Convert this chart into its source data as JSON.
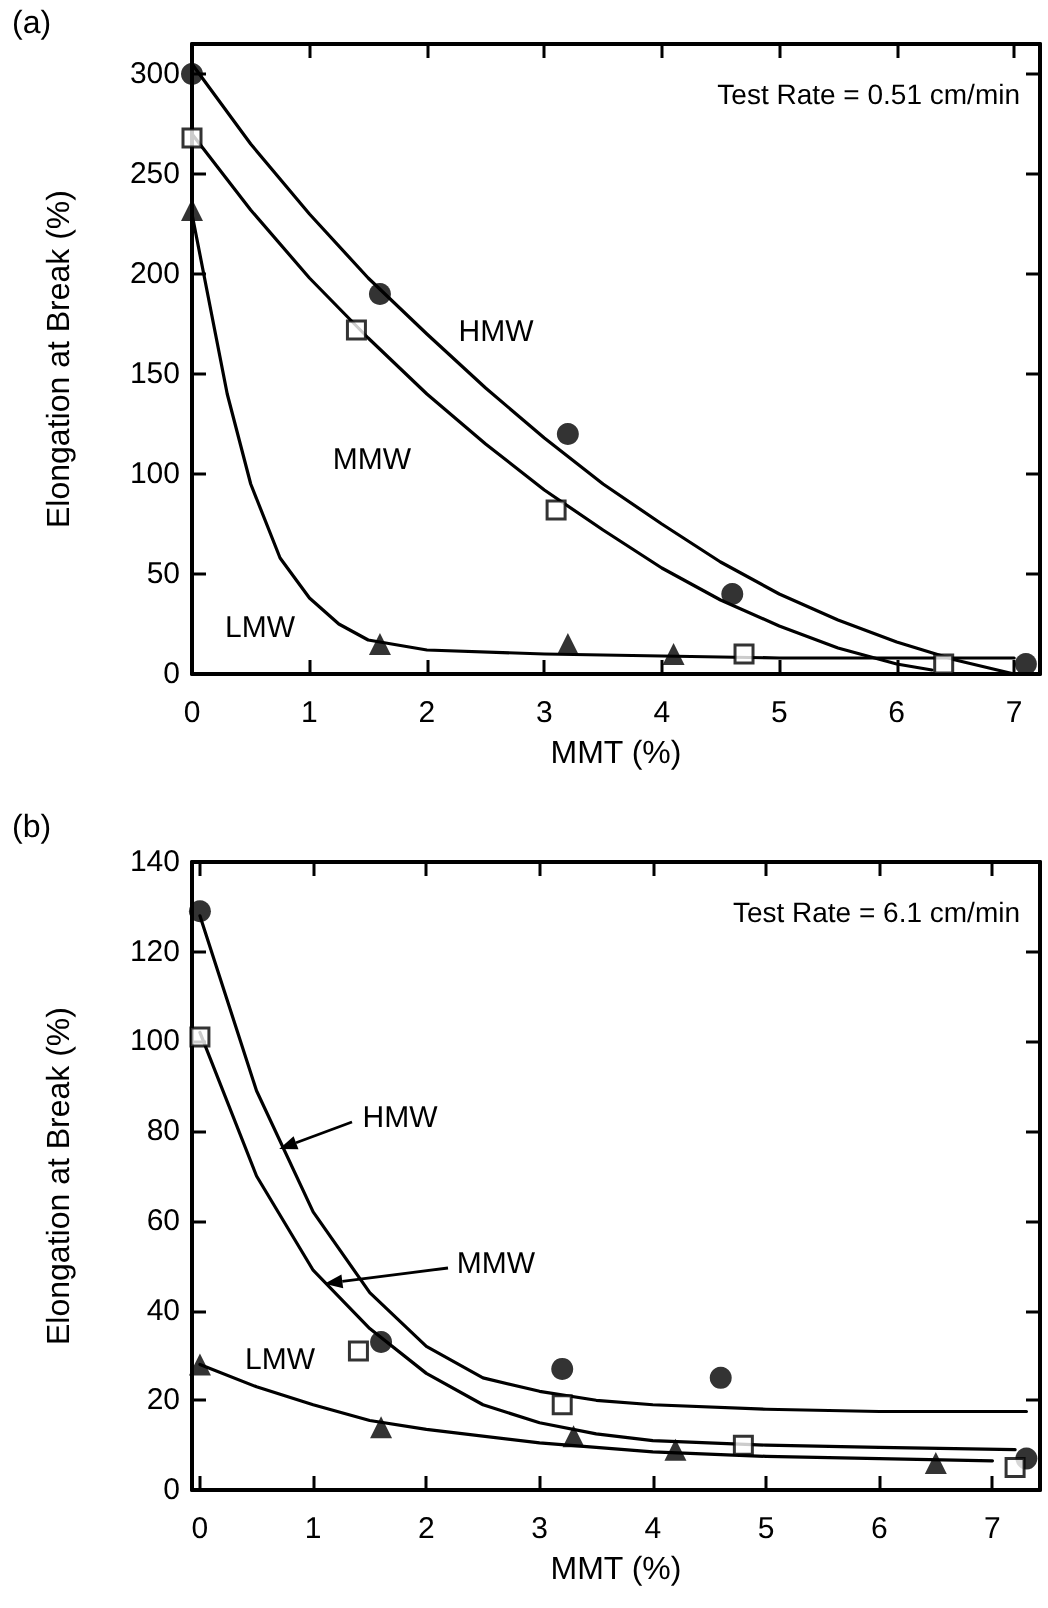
{
  "chart_data": [
    {
      "type": "scatter",
      "title": "(a)",
      "xlabel": "MMT (%)",
      "ylabel": "Elongation at Break (%)",
      "xlim": [
        0,
        7.22
      ],
      "xticks": [
        0,
        1,
        2,
        3,
        4,
        5,
        6,
        7
      ],
      "ylim": [
        0,
        315
      ],
      "yticks": [
        0,
        50,
        100,
        150,
        200,
        250,
        300
      ],
      "grid": false,
      "annotations": [
        "Test Rate = 0.51 cm/min",
        "HMW",
        "MMW",
        "LMW"
      ],
      "series": [
        {
          "marker": "circle",
          "color": "#000000",
          "x": [
            0,
            1.6,
            3.2,
            4.6,
            7.1
          ],
          "values": [
            300,
            190,
            120,
            40,
            5
          ]
        },
        {
          "marker": "square",
          "color": "#000000",
          "x": [
            0,
            1.4,
            3.1,
            4.7,
            6.4
          ],
          "values": [
            268,
            172,
            82,
            10,
            5
          ]
        },
        {
          "marker": "triangle",
          "color": "#000000",
          "x": [
            0,
            1.6,
            3.2,
            4.1
          ],
          "values": [
            232,
            15,
            15,
            10
          ]
        },
        {
          "type": "line",
          "marker": "none",
          "line_style": "solid",
          "color": "#000000",
          "x": [
            0,
            0.5,
            1,
            1.5,
            2,
            2.5,
            3,
            3.5,
            4,
            4.5,
            5,
            5.5,
            6,
            6.5,
            7
          ],
          "values": [
            305,
            265,
            230,
            198,
            170,
            143,
            118,
            95,
            75,
            56,
            40,
            27,
            16,
            7,
            0
          ]
        },
        {
          "type": "line",
          "marker": "none",
          "line_style": "solid",
          "color": "#000000",
          "x": [
            0,
            0.5,
            1,
            1.5,
            2,
            2.5,
            3,
            3.5,
            4,
            4.5,
            5,
            5.5,
            6,
            6.3
          ],
          "values": [
            270,
            232,
            198,
            168,
            140,
            115,
            92,
            72,
            53,
            37,
            24,
            13,
            5,
            2
          ]
        },
        {
          "type": "line",
          "marker": "none",
          "line_style": "solid",
          "color": "#000000",
          "x": [
            0,
            0.1,
            0.2,
            0.3,
            0.5,
            0.75,
            1,
            1.25,
            1.5,
            2,
            3,
            4,
            5,
            6,
            7
          ],
          "values": [
            230,
            200,
            170,
            140,
            95,
            58,
            38,
            25,
            17,
            12,
            10,
            9,
            8,
            8,
            8
          ]
        }
      ]
    },
    {
      "type": "scatter",
      "title": "(b)",
      "xlabel": "MMT (%)",
      "ylabel": "Elongation at Break (%)",
      "xlim": [
        -0.07,
        7.42
      ],
      "xticks": [
        0,
        1,
        2,
        3,
        4,
        5,
        6,
        7
      ],
      "ylim": [
        0,
        140
      ],
      "yticks": [
        0,
        20,
        40,
        60,
        80,
        100,
        120,
        140
      ],
      "grid": false,
      "annotations": [
        "Test Rate = 6.1 cm/min",
        {
          "text": "HMW",
          "x": 0.7,
          "y": 76
        },
        {
          "text": "MMW",
          "x": 1.1,
          "y": 46
        },
        "LMW"
      ],
      "series": [
        {
          "marker": "circle",
          "color": "#000000",
          "x": [
            0,
            1.6,
            3.2,
            4.6,
            7.3
          ],
          "values": [
            129,
            33,
            27,
            25,
            7
          ]
        },
        {
          "marker": "square",
          "color": "#000000",
          "x": [
            0,
            1.4,
            3.2,
            4.8,
            7.2
          ],
          "values": [
            101,
            31,
            19,
            10,
            5
          ]
        },
        {
          "marker": "triangle",
          "color": "#000000",
          "x": [
            0,
            1.6,
            3.3,
            4.2,
            6.5
          ],
          "values": [
            28,
            14,
            12,
            9,
            6
          ]
        },
        {
          "type": "line",
          "marker": "none",
          "line_style": "solid",
          "color": "#000000",
          "x": [
            0,
            0.5,
            1,
            1.5,
            2,
            2.5,
            3,
            3.5,
            4,
            5,
            6,
            7.3
          ],
          "values": [
            128,
            89,
            62,
            44,
            32,
            25,
            22,
            20,
            19,
            18,
            17.5,
            17.5
          ]
        },
        {
          "type": "line",
          "marker": "none",
          "line_style": "solid",
          "color": "#000000",
          "x": [
            0,
            0.5,
            1,
            1.5,
            2,
            2.5,
            3,
            3.5,
            4,
            5,
            6,
            7.2
          ],
          "values": [
            102,
            70,
            49,
            36,
            26,
            19,
            15,
            12.5,
            11,
            10,
            9.5,
            9
          ]
        },
        {
          "type": "line",
          "marker": "none",
          "line_style": "solid",
          "color": "#000000",
          "x": [
            0,
            0.5,
            1,
            1.5,
            2,
            3,
            4,
            5,
            6,
            7
          ],
          "values": [
            28,
            23,
            19,
            15.5,
            13.5,
            10.5,
            8.5,
            7.5,
            7,
            6.5
          ]
        }
      ]
    }
  ]
}
